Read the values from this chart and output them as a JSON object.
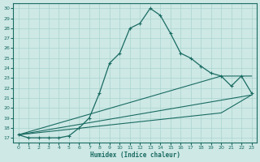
{
  "xlabel": "Humidex (Indice chaleur)",
  "bg_color": "#cde8e5",
  "line_color": "#1a6b62",
  "grid_color": "#aad4cf",
  "xlim": [
    -0.5,
    23.5
  ],
  "ylim": [
    16.5,
    30.5
  ],
  "xticks": [
    0,
    1,
    2,
    3,
    4,
    5,
    6,
    7,
    8,
    9,
    10,
    11,
    12,
    13,
    14,
    15,
    16,
    17,
    18,
    19,
    20,
    21,
    22,
    23
  ],
  "yticks": [
    17,
    18,
    19,
    20,
    21,
    22,
    23,
    24,
    25,
    26,
    27,
    28,
    29,
    30
  ],
  "main_series": {
    "x": [
      0,
      1,
      2,
      3,
      4,
      5,
      6,
      7,
      8,
      9,
      10,
      11,
      12,
      13,
      14,
      15,
      16,
      17,
      18,
      19,
      20,
      21,
      22,
      23
    ],
    "y": [
      17.3,
      17.0,
      17.0,
      17.0,
      17.0,
      17.2,
      18.0,
      19.0,
      21.5,
      24.5,
      25.5,
      28.0,
      28.5,
      30.0,
      29.3,
      27.5,
      25.5,
      25.0,
      24.2,
      23.5,
      23.2,
      22.2,
      23.2,
      21.5
    ]
  },
  "straight_lines": [
    {
      "x": [
        0,
        23
      ],
      "y": [
        17.3,
        21.3
      ]
    },
    {
      "x": [
        0,
        20,
        23
      ],
      "y": [
        17.3,
        23.2,
        23.2
      ]
    },
    {
      "x": [
        0,
        20,
        23
      ],
      "y": [
        17.3,
        19.5,
        21.3
      ]
    }
  ]
}
